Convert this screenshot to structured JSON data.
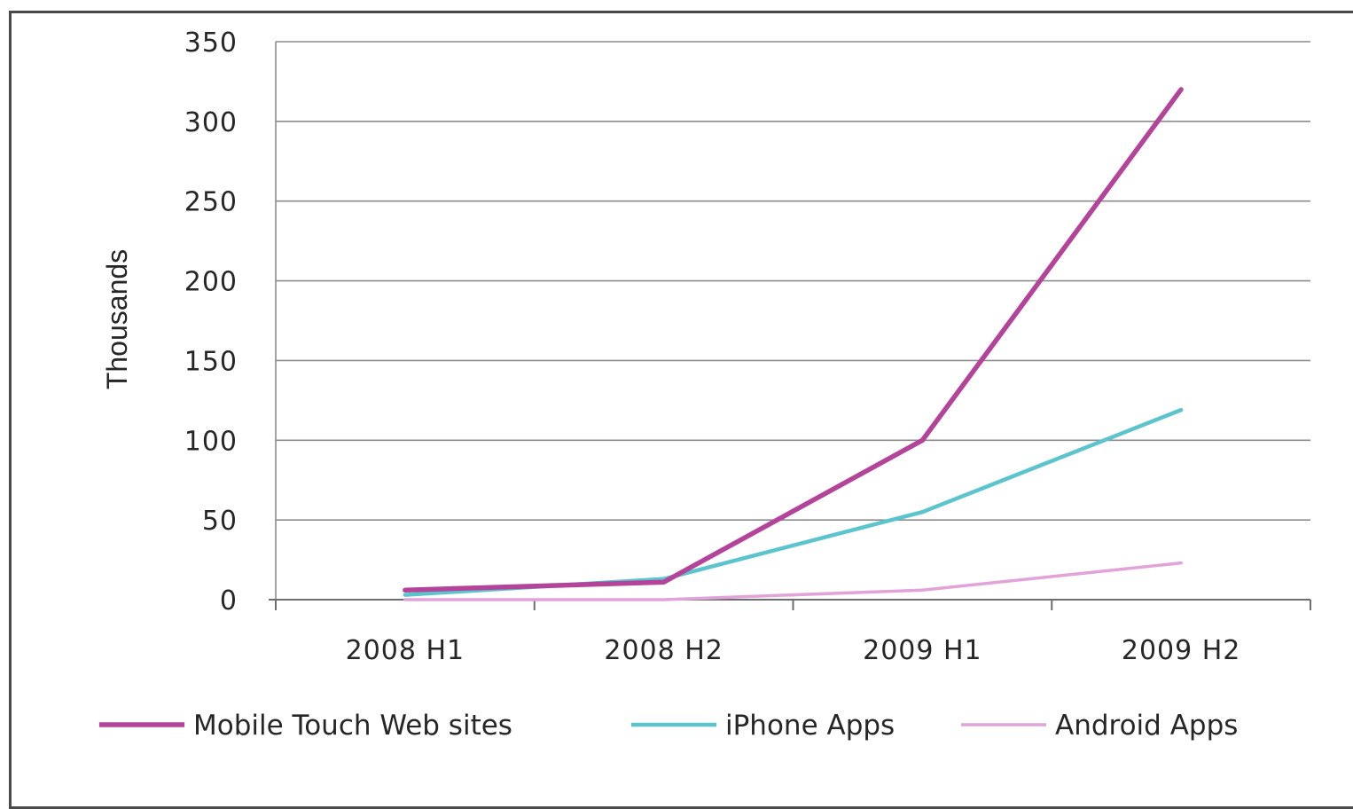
{
  "chart_data": {
    "type": "line",
    "title": "",
    "xlabel": "",
    "ylabel": "Thousands",
    "categories": [
      "2008 H1",
      "2008 H2",
      "2009 H1",
      "2009 H2"
    ],
    "ylim": [
      0,
      350
    ],
    "yticks": [
      "0",
      "50",
      "100",
      "150",
      "200",
      "250",
      "300",
      "350"
    ],
    "grid": "horizontal",
    "legend_position": "bottom",
    "series": [
      {
        "name": "Mobile Touch Web sites",
        "values": [
          6,
          11,
          100,
          320
        ],
        "color": "#b4449a"
      },
      {
        "name": "iPhone Apps",
        "values": [
          3,
          13,
          55,
          119
        ],
        "color": "#5bc4cc"
      },
      {
        "name": "Android Apps",
        "values": [
          0,
          0,
          6,
          23
        ],
        "color": "#e2a4d8"
      }
    ]
  }
}
